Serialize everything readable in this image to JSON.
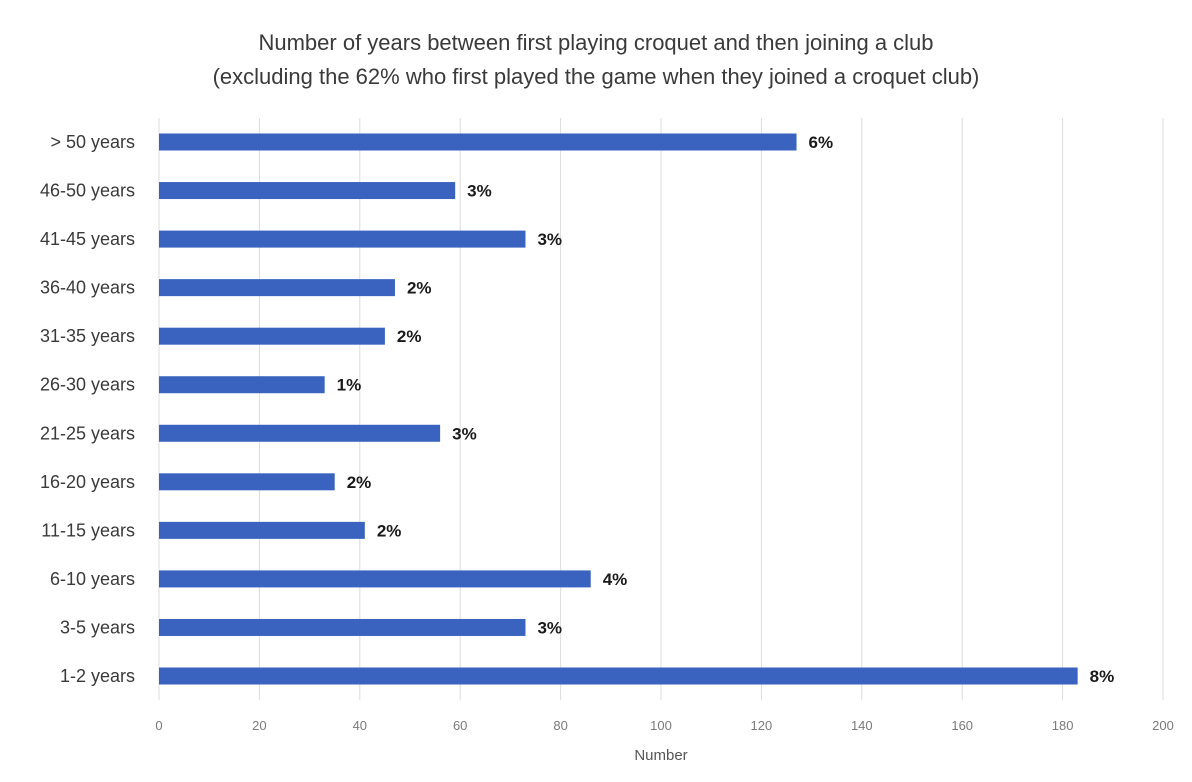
{
  "chart_data": {
    "type": "bar",
    "orientation": "horizontal",
    "title": "Number of years between first playing croquet and then joining a club",
    "subtitle": "(excluding the 62% who first played the game when they joined a croquet club)",
    "xlabel": "Number",
    "ylabel": "",
    "xlim": [
      0,
      200
    ],
    "x_ticks": [
      0,
      20,
      40,
      60,
      80,
      100,
      120,
      140,
      160,
      180,
      200
    ],
    "grid": true,
    "legend": "none",
    "categories": [
      "1-2 years",
      "3-5 years",
      "6-10 years",
      "11-15 years",
      "16-20 years",
      "21-25 years",
      "26-30 years",
      "31-35 years",
      "36-40 years",
      "41-45 years",
      "46-50 years",
      "> 50 years"
    ],
    "values": [
      183,
      73,
      86,
      41,
      35,
      56,
      33,
      45,
      47,
      73,
      59,
      127
    ],
    "data_labels": [
      "8%",
      "3%",
      "4%",
      "2%",
      "2%",
      "3%",
      "1%",
      "2%",
      "2%",
      "3%",
      "3%",
      "6%"
    ],
    "colors": {
      "bar": "#3a63c0",
      "grid": "#dcdcdc",
      "text": "#3a3a3a"
    }
  }
}
